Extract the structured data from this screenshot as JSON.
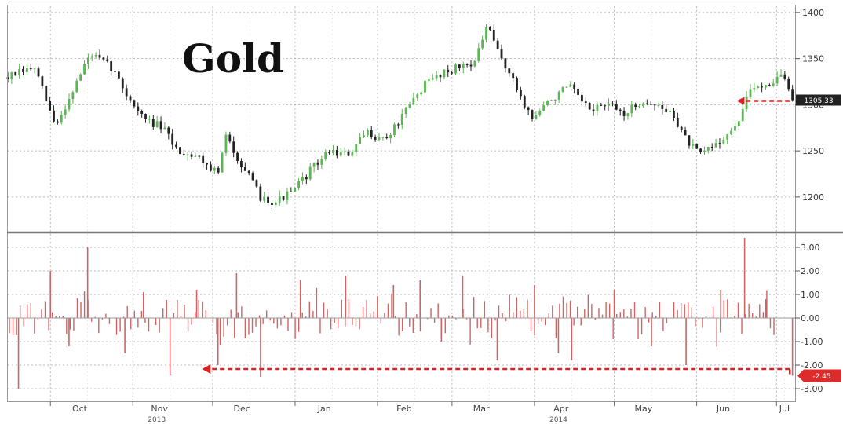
{
  "chart_data": [
    {
      "type": "line",
      "title": "Gold",
      "ylim": [
        1165,
        1405
      ],
      "yticks": [
        1200,
        1250,
        1300,
        1350,
        1400
      ],
      "ytick_labels": [
        "1200",
        "1250",
        "1300",
        "1350",
        "1400"
      ],
      "last_value_label": "1305.33",
      "grid": true,
      "series": [
        {
          "x": [
            "2013-09-15",
            "2013-09-25",
            "2013-10-03",
            "2013-10-10",
            "2013-10-16",
            "2013-10-24",
            "2013-10-30",
            "2013-11-05",
            "2013-11-12",
            "2013-11-18",
            "2013-11-25",
            "2013-11-28",
            "2013-12-03",
            "2013-12-06",
            "2013-12-12",
            "2013-12-19",
            "2013-12-24",
            "2013-12-31",
            "2014-01-07",
            "2014-01-14",
            "2014-01-21",
            "2014-01-28",
            "2014-02-04",
            "2014-02-11",
            "2014-02-18",
            "2014-02-25",
            "2014-03-03",
            "2014-03-10",
            "2014-03-14",
            "2014-03-18",
            "2014-03-24",
            "2014-03-31",
            "2014-04-07",
            "2014-04-14",
            "2014-04-21",
            "2014-04-28",
            "2014-05-05",
            "2014-05-12",
            "2014-05-19",
            "2014-05-23",
            "2014-05-28",
            "2014-06-02",
            "2014-06-09",
            "2014-06-16",
            "2014-06-19",
            "2014-06-23",
            "2014-06-30",
            "2014-07-03",
            "2014-07-07"
          ],
          "values": [
            1330,
            1340,
            1275,
            1320,
            1355,
            1340,
            1310,
            1285,
            1275,
            1250,
            1245,
            1238,
            1225,
            1265,
            1235,
            1200,
            1195,
            1205,
            1230,
            1250,
            1245,
            1270,
            1262,
            1290,
            1320,
            1335,
            1340,
            1348,
            1385,
            1360,
            1325,
            1285,
            1305,
            1320,
            1295,
            1300,
            1290,
            1305,
            1295,
            1290,
            1262,
            1245,
            1260,
            1275,
            1305,
            1320,
            1325,
            1335,
            1305
          ]
        }
      ]
    },
    {
      "type": "bar",
      "ylim": [
        -3.5,
        3.5
      ],
      "yticks": [
        -3,
        -2,
        -1,
        0,
        1,
        2,
        3
      ],
      "ytick_labels": [
        "-3.00",
        "-2.00",
        "-1.00",
        "0.00",
        "1.00",
        "2.00",
        "3.00"
      ],
      "last_value_label": "-2.45",
      "grid": true,
      "series": [
        {
          "x": [
            "2013-09-19",
            "2013-10-01",
            "2013-10-08",
            "2013-10-15",
            "2013-10-29",
            "2013-11-05",
            "2013-11-15",
            "2013-11-25",
            "2013-12-03",
            "2013-12-10",
            "2013-12-19",
            "2014-01-03",
            "2014-01-20",
            "2014-02-07",
            "2014-02-17",
            "2014-02-25",
            "2014-03-05",
            "2014-03-18",
            "2014-04-01",
            "2014-04-10",
            "2014-04-15",
            "2014-05-01",
            "2014-05-15",
            "2014-05-28",
            "2014-06-10",
            "2014-06-19",
            "2014-06-27",
            "2014-07-07"
          ],
          "values": [
            -3.0,
            2.0,
            -1.2,
            3.0,
            -1.5,
            1.1,
            -2.4,
            1.2,
            -2.0,
            1.9,
            -2.5,
            1.6,
            1.8,
            1.4,
            1.6,
            -1.0,
            1.8,
            -1.8,
            1.4,
            -1.5,
            -1.8,
            1.2,
            -1.2,
            -2.0,
            1.2,
            3.4,
            0.8,
            -2.45
          ]
        }
      ]
    }
  ],
  "axes": {
    "months": [
      "Oct",
      "Nov",
      "Dec",
      "Jan",
      "Feb",
      "Mar",
      "Apr",
      "May",
      "Jun",
      "Jul"
    ],
    "years": [
      "2013",
      "2014"
    ]
  },
  "colors": {
    "up": "#5ab552",
    "down": "#222222",
    "bar": "#d06464",
    "arrow": "#dd2222",
    "panel_divider": "#777777",
    "grid": "#bbbbbb"
  }
}
